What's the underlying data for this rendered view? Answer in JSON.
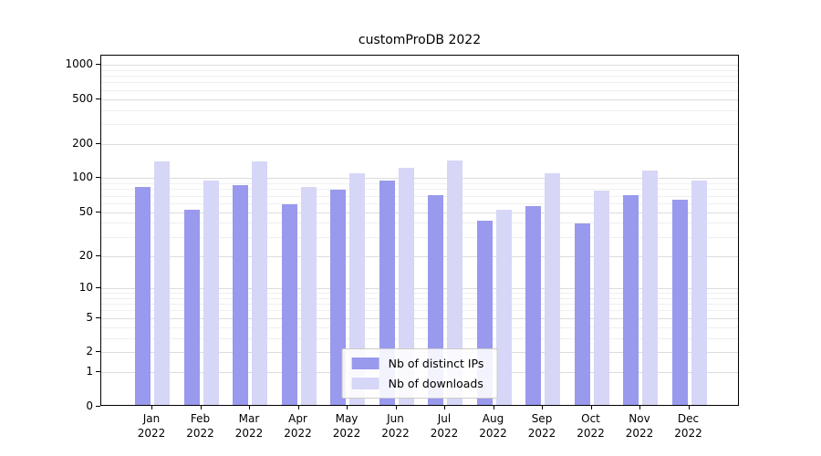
{
  "chart_data": {
    "type": "bar",
    "title": "customProDB 2022",
    "categories": [
      "Jan",
      "Feb",
      "Mar",
      "Apr",
      "May",
      "Jun",
      "Jul",
      "Aug",
      "Sep",
      "Oct",
      "Nov",
      "Dec"
    ],
    "category_year": "2022",
    "yticks": [
      0,
      1,
      2,
      5,
      10,
      20,
      50,
      100,
      200,
      500,
      1000
    ],
    "ylim": [
      0,
      1200
    ],
    "yscale": "log10(value+1)",
    "grid": "horizontal",
    "legend_position": "bottom-center",
    "series": [
      {
        "name": "Nb of distinct IPs",
        "color": "#9999ee",
        "values": [
          80,
          51,
          84,
          57,
          77,
          92,
          68,
          40,
          54,
          38,
          68,
          62
        ]
      },
      {
        "name": "Nb of downloads",
        "color": "#d6d6f7",
        "values": [
          135,
          92,
          137,
          80,
          106,
          120,
          138,
          51,
          106,
          75,
          113,
          92
        ]
      }
    ]
  }
}
